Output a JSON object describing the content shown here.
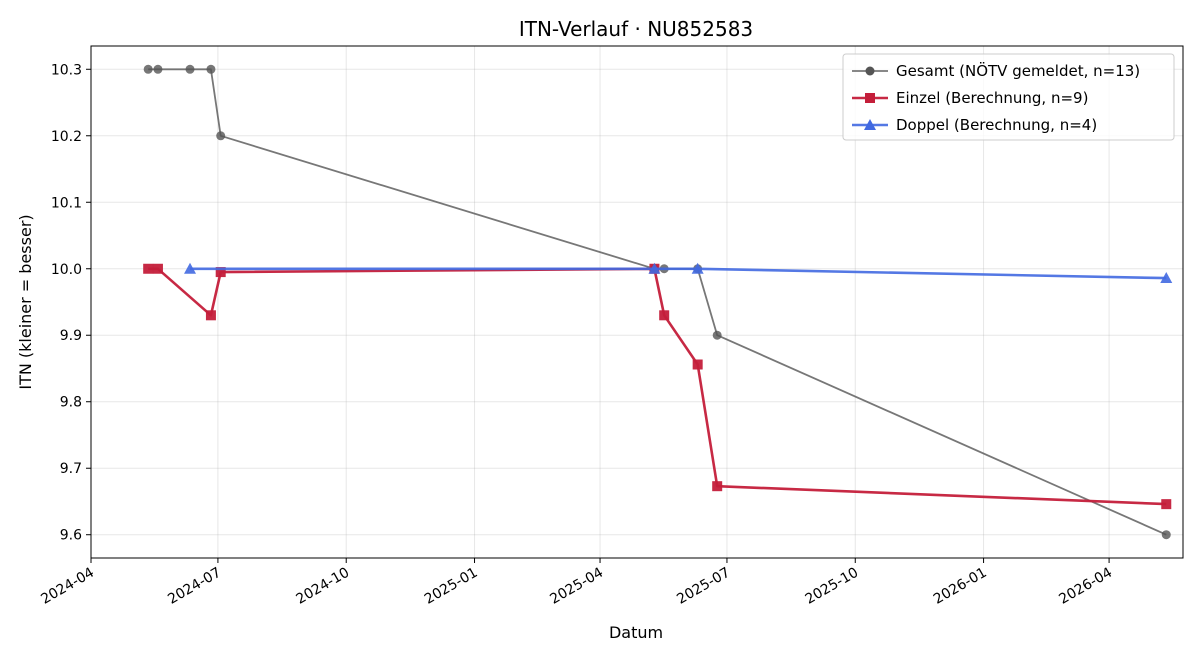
{
  "chart_data": {
    "type": "line",
    "title": "ITN-Verlauf · NU852583",
    "xlabel": "Datum",
    "ylabel": "ITN  (kleiner = besser)",
    "xlim": [
      "2024-04-01",
      "2026-05-24"
    ],
    "ylim": [
      9.565,
      10.335
    ],
    "x_ticks": [
      "2024-04",
      "2024-07",
      "2024-10",
      "2025-01",
      "2025-04",
      "2025-07",
      "2025-10",
      "2026-01",
      "2026-04"
    ],
    "y_ticks": [
      9.6,
      9.7,
      9.8,
      9.9,
      10.0,
      10.1,
      10.2,
      10.3
    ],
    "grid": true,
    "legend_position": "top-right",
    "series": [
      {
        "name": "Gesamt (NÖTV gemeldet, n=13)",
        "color": "#555555",
        "marker": "circle",
        "points": [
          {
            "x": "2024-05-12",
            "y": 10.3
          },
          {
            "x": "2024-05-19",
            "y": 10.3
          },
          {
            "x": "2024-06-11",
            "y": 10.3
          },
          {
            "x": "2024-06-26",
            "y": 10.3
          },
          {
            "x": "2024-07-03",
            "y": 10.2
          },
          {
            "x": "2025-05-10",
            "y": 10.0
          },
          {
            "x": "2025-05-17",
            "y": 10.0
          },
          {
            "x": "2025-06-10",
            "y": 10.0
          },
          {
            "x": "2025-06-24",
            "y": 9.9
          },
          {
            "x": "2026-05-12",
            "y": 9.6
          }
        ]
      },
      {
        "name": "Einzel (Berechnung, n=9)",
        "color": "#c41e3a",
        "marker": "square",
        "points": [
          {
            "x": "2024-05-12",
            "y": 10.0
          },
          {
            "x": "2024-05-19",
            "y": 10.0
          },
          {
            "x": "2024-06-26",
            "y": 9.93
          },
          {
            "x": "2024-07-03",
            "y": 9.995
          },
          {
            "x": "2025-05-10",
            "y": 10.0
          },
          {
            "x": "2025-05-17",
            "y": 9.93
          },
          {
            "x": "2025-06-10",
            "y": 9.856
          },
          {
            "x": "2025-06-24",
            "y": 9.673
          },
          {
            "x": "2026-05-12",
            "y": 9.646
          }
        ]
      },
      {
        "name": "Doppel (Berechnung, n=4)",
        "color": "#4169e1",
        "marker": "triangle",
        "points": [
          {
            "x": "2024-06-11",
            "y": 10.0
          },
          {
            "x": "2025-05-10",
            "y": 10.0
          },
          {
            "x": "2025-06-10",
            "y": 10.0
          },
          {
            "x": "2026-05-12",
            "y": 9.986
          }
        ]
      }
    ]
  }
}
